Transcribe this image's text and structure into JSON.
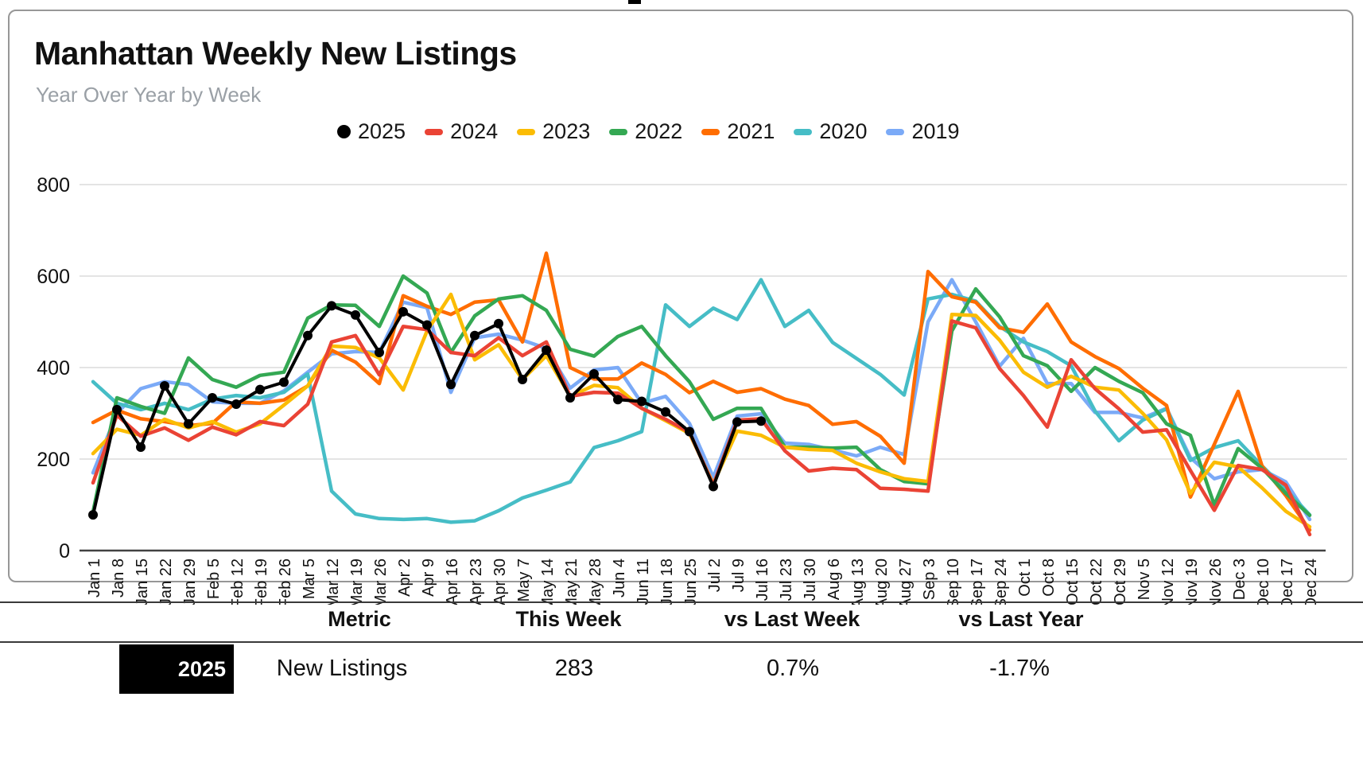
{
  "header": {
    "title": "Manhattan Weekly New Listings",
    "subtitle": "Year Over Year by Week"
  },
  "chart_data": {
    "type": "line",
    "title": "Manhattan Weekly New Listings",
    "subtitle": "Year Over Year by Week",
    "ylabel": "",
    "xlabel": "",
    "ylim": [
      0,
      800
    ],
    "yticks": [
      0,
      200,
      400,
      600,
      800
    ],
    "grid": "horizontal",
    "legend_position": "top",
    "categories": [
      "Jan 1",
      "Jan 8",
      "Jan 15",
      "Jan 22",
      "Jan 29",
      "Feb 5",
      "Feb 12",
      "Feb 19",
      "Feb 26",
      "Mar 5",
      "Mar 12",
      "Mar 19",
      "Mar 26",
      "Apr 2",
      "Apr 9",
      "Apr 16",
      "Apr 23",
      "Apr 30",
      "May 7",
      "May 14",
      "May 21",
      "May 28",
      "Jun 4",
      "Jun 11",
      "Jun 18",
      "Jun 25",
      "Jul 2",
      "Jul 9",
      "Jul 16",
      "Jul 23",
      "Jul 30",
      "Aug 6",
      "Aug 13",
      "Aug 20",
      "Aug 27",
      "Sep 3",
      "Sep 10",
      "Sep 17",
      "Sep 24",
      "Oct 1",
      "Oct 8",
      "Oct 15",
      "Oct 22",
      "Oct 29",
      "Nov 5",
      "Nov 12",
      "Nov 19",
      "Nov 26",
      "Dec 3",
      "Dec 10",
      "Dec 17",
      "Dec 24"
    ],
    "series": [
      {
        "name": "2025",
        "color": "#000000",
        "marker": "circle",
        "values": [
          78,
          308,
          226,
          360,
          277,
          334,
          320,
          352,
          368,
          470,
          535,
          515,
          433,
          522,
          493,
          363,
          470,
          496,
          374,
          438,
          334,
          386,
          330,
          326,
          303,
          260,
          140,
          281,
          283,
          null,
          null,
          null,
          null,
          null,
          null,
          null,
          null,
          null,
          null,
          null,
          null,
          null,
          null,
          null,
          null,
          null,
          null,
          null,
          null,
          null,
          null,
          null
        ]
      },
      {
        "name": "2024",
        "color": "#ea4335",
        "marker": "dash",
        "values": [
          148,
          296,
          250,
          268,
          241,
          270,
          253,
          282,
          273,
          320,
          456,
          470,
          384,
          490,
          483,
          433,
          426,
          465,
          426,
          456,
          337,
          346,
          344,
          311,
          287,
          259,
          143,
          285,
          288,
          218,
          174,
          180,
          177,
          136,
          134,
          130,
          502,
          487,
          398,
          339,
          270,
          417,
          354,
          310,
          259,
          264,
          175,
          88,
          186,
          177,
          143,
          35
        ]
      },
      {
        "name": "2023",
        "color": "#fbbc04",
        "marker": "dash",
        "values": [
          212,
          265,
          252,
          287,
          268,
          282,
          259,
          277,
          318,
          360,
          447,
          444,
          421,
          351,
          480,
          560,
          417,
          450,
          374,
          426,
          337,
          361,
          356,
          311,
          284,
          256,
          146,
          261,
          252,
          226,
          221,
          219,
          191,
          172,
          157,
          151,
          516,
          514,
          460,
          390,
          357,
          381,
          357,
          351,
          300,
          242,
          125,
          193,
          183,
          137,
          86,
          52
        ]
      },
      {
        "name": "2022",
        "color": "#34a853",
        "marker": "dash",
        "values": [
          85,
          334,
          315,
          300,
          421,
          374,
          357,
          383,
          390,
          508,
          537,
          536,
          490,
          600,
          563,
          433,
          513,
          550,
          557,
          525,
          440,
          425,
          468,
          490,
          426,
          369,
          287,
          311,
          311,
          226,
          226,
          224,
          226,
          177,
          151,
          146,
          480,
          572,
          511,
          426,
          404,
          348,
          400,
          370,
          345,
          277,
          252,
          100,
          223,
          180,
          125,
          77
        ]
      },
      {
        "name": "2021",
        "color": "#ff6d01",
        "marker": "dash",
        "values": [
          280,
          307,
          288,
          282,
          273,
          278,
          325,
          322,
          329,
          360,
          438,
          412,
          365,
          557,
          534,
          516,
          543,
          548,
          456,
          650,
          400,
          375,
          375,
          410,
          385,
          345,
          370,
          346,
          354,
          331,
          317,
          276,
          282,
          250,
          191,
          610,
          555,
          543,
          487,
          477,
          539,
          456,
          424,
          398,
          355,
          317,
          117,
          232,
          348,
          185,
          120,
          45
        ]
      },
      {
        "name": "2020",
        "color": "#46bdc6",
        "marker": "dash",
        "values": [
          369,
          322,
          308,
          322,
          308,
          331,
          339,
          334,
          346,
          386,
          130,
          80,
          70,
          68,
          70,
          62,
          65,
          87,
          115,
          132,
          150,
          225,
          240,
          260,
          537,
          490,
          530,
          505,
          592,
          490,
          525,
          455,
          420,
          385,
          340,
          550,
          560,
          545,
          490,
          456,
          435,
          404,
          305,
          240,
          285,
          310,
          197,
          225,
          240,
          185,
          134,
          78
        ]
      },
      {
        "name": "2019",
        "color": "#7baaf7",
        "marker": "dash",
        "values": [
          170,
          300,
          354,
          369,
          363,
          325,
          322,
          322,
          349,
          390,
          430,
          435,
          433,
          543,
          531,
          346,
          465,
          473,
          460,
          442,
          355,
          395,
          400,
          322,
          337,
          278,
          160,
          294,
          299,
          235,
          232,
          220,
          207,
          226,
          210,
          500,
          592,
          500,
          403,
          464,
          365,
          365,
          302,
          302,
          290,
          311,
          203,
          157,
          172,
          177,
          150,
          68
        ]
      }
    ]
  },
  "table": {
    "headers": [
      "Metric",
      "This Week",
      "vs Last Week",
      "vs Last Year"
    ],
    "row": {
      "year": "2025",
      "metric": "New Listings",
      "this_week": "283",
      "vs_last_week": "0.7%",
      "vs_last_year": "-1.7%"
    }
  }
}
